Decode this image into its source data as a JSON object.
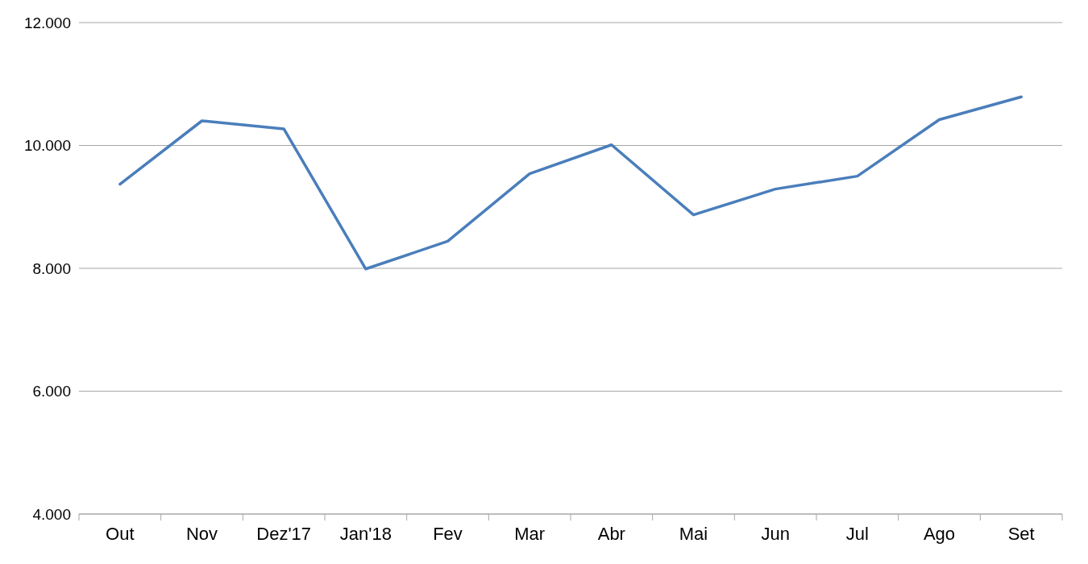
{
  "chart_data": {
    "type": "line",
    "categories": [
      "Out",
      "Nov",
      "Dez'17",
      "Jan'18",
      "Fev",
      "Mar",
      "Abr",
      "Mai",
      "Jun",
      "Jul",
      "Ago",
      "Set"
    ],
    "series": [
      {
        "color": "#4a7ebb",
        "values": [
          9370,
          10400,
          10270,
          7990,
          8440,
          9540,
          10010,
          8870,
          9290,
          9500,
          10420,
          10790
        ]
      }
    ],
    "ylim": [
      4000,
      12000
    ],
    "yticks": [
      {
        "value": 4000,
        "label": "4.000"
      },
      {
        "value": 6000,
        "label": "6.000"
      },
      {
        "value": 8000,
        "label": "8.000"
      },
      {
        "value": 10000,
        "label": "10.000"
      },
      {
        "value": 12000,
        "label": "12.000"
      }
    ],
    "grid": "y",
    "marker": "none",
    "line_style": "solid"
  }
}
